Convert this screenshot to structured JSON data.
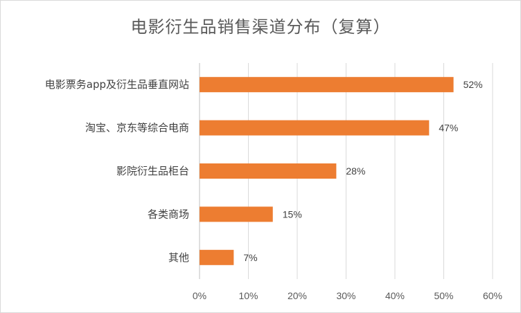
{
  "chart_data": {
    "type": "bar",
    "orientation": "horizontal",
    "title": "电影衍生品销售渠道分布（复算）",
    "categories": [
      "电影票务app及衍生品垂直网站",
      "淘宝、京东等综合电商",
      "影院衍生品柜台",
      "各类商场",
      "其他"
    ],
    "values": [
      52,
      47,
      28,
      15,
      7
    ],
    "value_labels": [
      "52%",
      "47%",
      "28%",
      "15%",
      "7%"
    ],
    "xlim": [
      0,
      60
    ],
    "x_ticks": [
      "0%",
      "10%",
      "20%",
      "30%",
      "40%",
      "50%",
      "60%"
    ],
    "bar_color": "#ED7D31",
    "grid": "vertical",
    "legend": "none"
  }
}
